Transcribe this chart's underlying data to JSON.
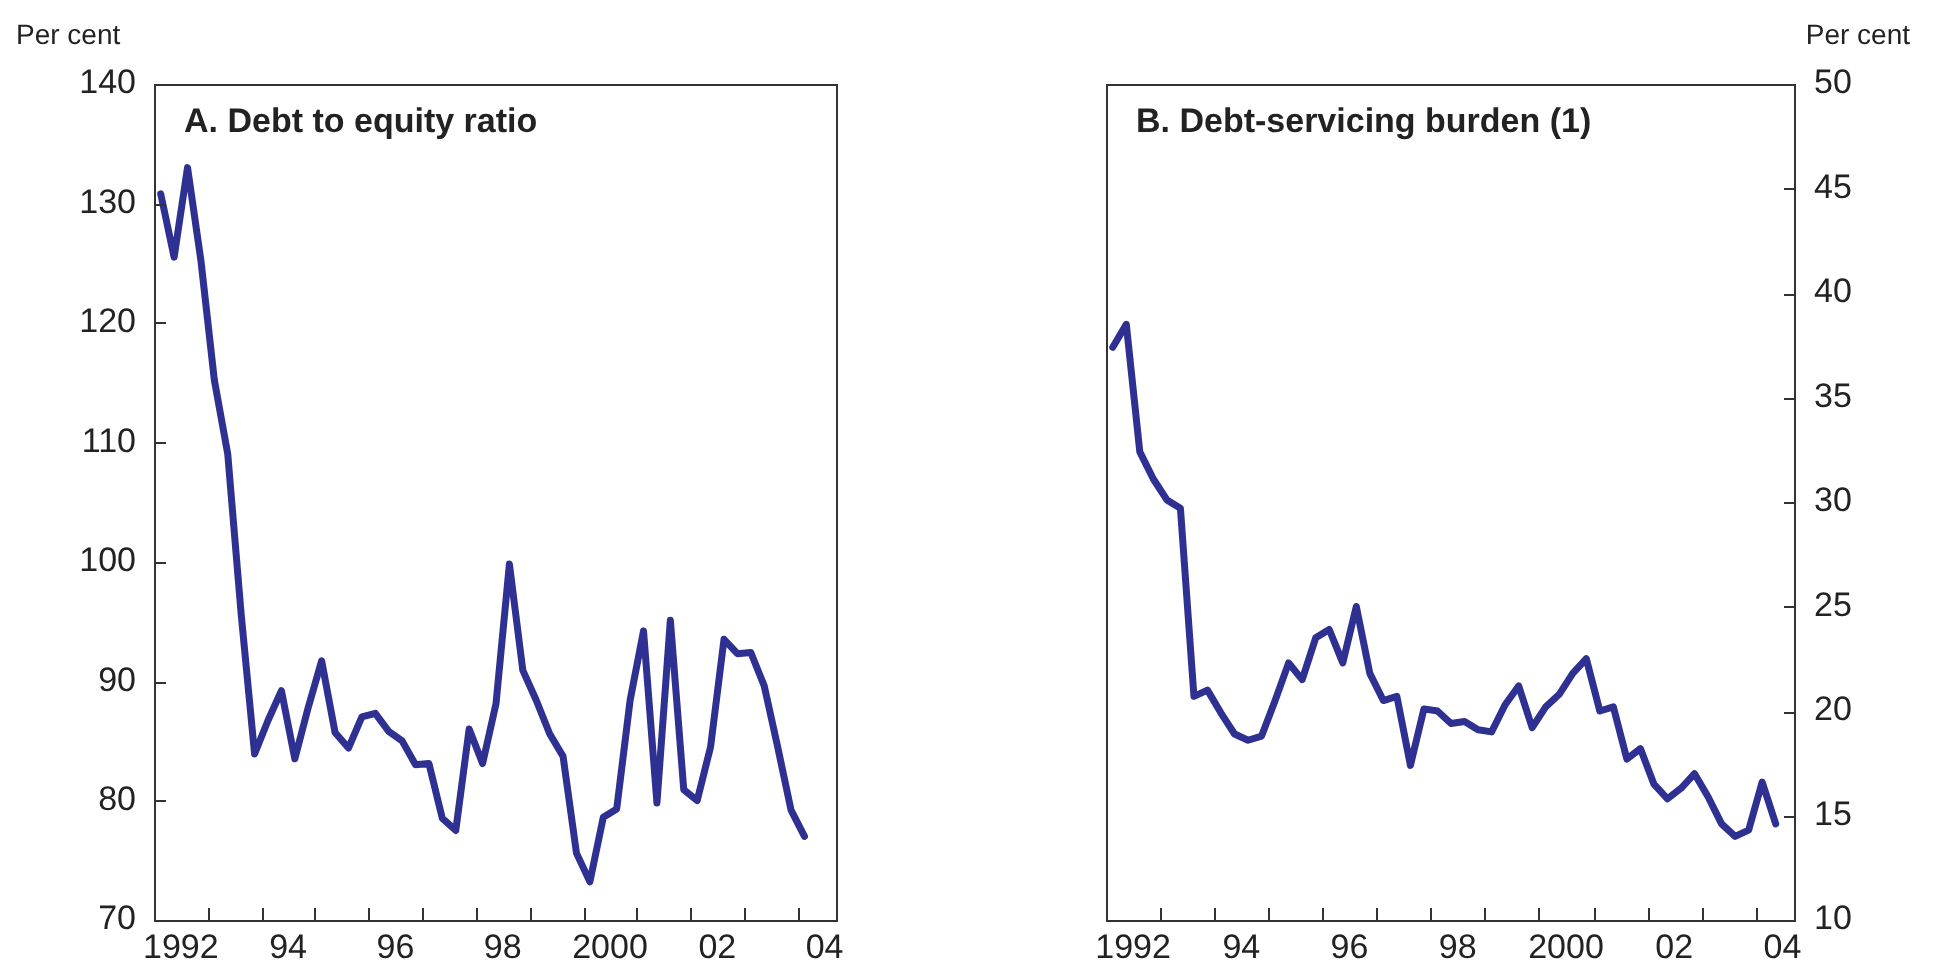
{
  "chart_data": [
    {
      "type": "line",
      "title": "A. Debt to equity ratio",
      "ylabel": "Per cent",
      "x": [
        1991.625,
        1991.875,
        1992.125,
        1992.375,
        1992.625,
        1992.875,
        1993.125,
        1993.375,
        1993.625,
        1993.875,
        1994.125,
        1994.375,
        1994.625,
        1994.875,
        1995.125,
        1995.375,
        1995.625,
        1995.875,
        1996.125,
        1996.375,
        1996.625,
        1996.875,
        1997.125,
        1997.375,
        1997.625,
        1997.875,
        1998.125,
        1998.375,
        1998.625,
        1998.875,
        1999.125,
        1999.375,
        1999.625,
        1999.875,
        2000.125,
        2000.375,
        2000.625,
        2000.875,
        2001.125,
        2001.375,
        2001.625,
        2001.875,
        2002.125,
        2002.375,
        2002.625,
        2002.875,
        2003.125,
        2003.375,
        2003.625
      ],
      "series": [
        {
          "color": "#2e3192",
          "values": [
            130.8,
            125.5,
            133,
            125.2,
            115.2,
            109,
            95.6,
            83.9,
            86.7,
            89.2,
            83.5,
            87.8,
            91.7,
            85.7,
            84.4,
            87,
            87.3,
            85.8,
            85,
            83,
            83.1,
            78.5,
            77.5,
            86,
            83.1,
            88.1,
            99.8,
            90.9,
            88.4,
            85.6,
            83.7,
            75.6,
            73.2,
            78.6,
            79.3,
            88.4,
            94.2,
            79.8,
            95.1,
            80.9,
            80,
            84.5,
            93.5,
            92.3,
            92.4,
            89.6,
            84.5,
            79.2,
            77
          ]
        }
      ],
      "xlim": [
        1991.5,
        2004.25
      ],
      "xticks": [
        {
          "value": 1992.5,
          "label": null
        },
        {
          "value": 1993.5,
          "label": null
        },
        {
          "value": 1994.5,
          "label": null
        },
        {
          "value": 1995.5,
          "label": null
        },
        {
          "value": 1996.5,
          "label": null
        },
        {
          "value": 1997.5,
          "label": null
        },
        {
          "value": 1998.5,
          "label": null
        },
        {
          "value": 1999.5,
          "label": null
        },
        {
          "value": 2000.5,
          "label": null
        },
        {
          "value": 2001.5,
          "label": null
        },
        {
          "value": 2002.5,
          "label": null
        },
        {
          "value": 2003.5,
          "label": null
        },
        {
          "value": 1992,
          "label": "1992"
        },
        {
          "value": 1994,
          "label": "94"
        },
        {
          "value": 1996,
          "label": "96"
        },
        {
          "value": 1998,
          "label": "98"
        },
        {
          "value": 2000,
          "label": "2000"
        },
        {
          "value": 2002,
          "label": "02"
        },
        {
          "value": 2004,
          "label": "04"
        }
      ],
      "ylim": [
        70,
        140
      ],
      "yticks": [
        70,
        80,
        90,
        100,
        110,
        120,
        130,
        140
      ],
      "line_style": "solid"
    },
    {
      "type": "line",
      "title": "B. Debt-servicing burden (1)",
      "y2label": "Per cent",
      "x": [
        1991.625,
        1991.875,
        1992.125,
        1992.375,
        1992.625,
        1992.875,
        1993.125,
        1993.375,
        1993.625,
        1993.875,
        1994.125,
        1994.375,
        1994.625,
        1994.875,
        1995.125,
        1995.375,
        1995.625,
        1995.875,
        1996.125,
        1996.375,
        1996.625,
        1996.875,
        1997.125,
        1997.375,
        1997.625,
        1997.875,
        1998.125,
        1998.375,
        1998.625,
        1998.875,
        1999.125,
        1999.375,
        1999.625,
        1999.875,
        2000.125,
        2000.375,
        2000.625,
        2000.875,
        2001.125,
        2001.375,
        2001.625,
        2001.875,
        2002.125,
        2002.375,
        2002.625,
        2002.875,
        2003.125,
        2003.375,
        2003.625,
        2003.875
      ],
      "series": [
        {
          "color": "#2e3192",
          "axis": "y2",
          "values": [
            37.4,
            38.5,
            32.4,
            31.1,
            30.1,
            29.7,
            20.7,
            21,
            19.9,
            18.9,
            18.6,
            18.8,
            20.5,
            22.3,
            21.5,
            23.5,
            23.9,
            22.3,
            25,
            21.8,
            20.5,
            20.7,
            17.4,
            20.1,
            20,
            19.4,
            19.5,
            19.1,
            19,
            20.3,
            21.2,
            19.2,
            20.2,
            20.8,
            21.8,
            22.5,
            20,
            20.2,
            17.7,
            18.2,
            16.5,
            15.8,
            16.3,
            17,
            15.9,
            14.6,
            14,
            14.3,
            16.6,
            14.6
          ]
        }
      ],
      "xlim": [
        1991.5,
        2004.25
      ],
      "xticks": [
        {
          "value": 1992.5,
          "label": null
        },
        {
          "value": 1993.5,
          "label": null
        },
        {
          "value": 1994.5,
          "label": null
        },
        {
          "value": 1995.5,
          "label": null
        },
        {
          "value": 1996.5,
          "label": null
        },
        {
          "value": 1997.5,
          "label": null
        },
        {
          "value": 1998.5,
          "label": null
        },
        {
          "value": 1999.5,
          "label": null
        },
        {
          "value": 2000.5,
          "label": null
        },
        {
          "value": 2001.5,
          "label": null
        },
        {
          "value": 2002.5,
          "label": null
        },
        {
          "value": 2003.5,
          "label": null
        },
        {
          "value": 1992,
          "label": "1992"
        },
        {
          "value": 1994,
          "label": "94"
        },
        {
          "value": 1996,
          "label": "96"
        },
        {
          "value": 1998,
          "label": "98"
        },
        {
          "value": 2000,
          "label": "2000"
        },
        {
          "value": 2002,
          "label": "02"
        },
        {
          "value": 2004,
          "label": "04"
        }
      ],
      "y2lim": [
        10,
        50
      ],
      "y2ticks": [
        10,
        15,
        20,
        25,
        30,
        35,
        40,
        45,
        50
      ],
      "line_style": "solid"
    }
  ]
}
